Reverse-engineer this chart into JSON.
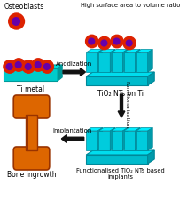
{
  "bg_color": "#ffffff",
  "osteoblast_color": "#dd2200",
  "osteoblast_nucleus_color": "#6600aa",
  "ti_metal_color": "#00cccc",
  "ti_metal_edge": "#009999",
  "nanotube_color": "#00ccdd",
  "nanotube_edge": "#008899",
  "nanotube_top_color": "#00eeff",
  "nanotube_base_color": "#00bbcc",
  "nanotube_base_top": "#00ddee",
  "nanotube_side_color": "#009aaa",
  "bone_orange": "#dd6600",
  "bone_dark": "#993300",
  "arrow_color": "#111111",
  "label_osteoblasts": "Osteoblasts",
  "label_ti_metal": "Ti metal",
  "label_anodization": "Anodization",
  "label_tio2": "TiO₂ NTs on Ti",
  "label_high_surface": "High surface area to volume ratio",
  "label_functionalisation": "Functionalisation",
  "label_functionalized": "Functionalised TiO₂ NTs based\nimplants",
  "label_implantation": "Implantation",
  "label_bone": "Bone ingrowth"
}
